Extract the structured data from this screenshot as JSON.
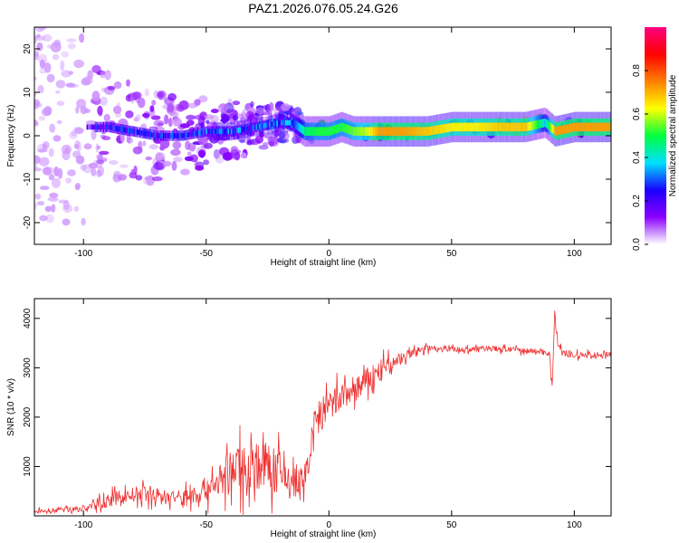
{
  "title": "PAZ1.2026.076.05.24.G26",
  "chart_data": [
    {
      "type": "heatmap",
      "xlabel": "Height of straight line (km)",
      "ylabel": "Frequency (Hz)",
      "xlim": [
        -120,
        115
      ],
      "ylim": [
        -25,
        25
      ],
      "xticks": [
        -100,
        -50,
        0,
        50,
        100
      ],
      "yticks": [
        -20,
        -10,
        0,
        10,
        20
      ],
      "colorbar": {
        "label": "Normalized spectral amplitude",
        "range": [
          0,
          1
        ],
        "ticks": [
          0.0,
          0.2,
          0.4,
          0.6,
          0.8
        ],
        "tick_labels": [
          "0.0",
          "0.2",
          "0.4",
          "0.6",
          "0.8"
        ],
        "stops": [
          "#ffffff",
          "#8a00ff",
          "#1a00ff",
          "#00e0ff",
          "#00ff40",
          "#ffff00",
          "#ff8000",
          "#ff0000",
          "#ff0080"
        ]
      },
      "signal_track": {
        "x": [
          -100,
          -90,
          -80,
          -70,
          -60,
          -50,
          -40,
          -30,
          -20,
          -15,
          -10,
          -5,
          0,
          5,
          10,
          15,
          20,
          30,
          40,
          50,
          60,
          70,
          80,
          88,
          92,
          100,
          115
        ],
        "freq_hz": [
          2,
          2,
          1,
          0,
          0,
          1,
          1,
          2,
          3,
          3,
          1,
          1,
          1,
          2,
          1,
          1,
          1,
          1,
          1,
          2,
          2,
          2,
          2,
          3,
          1,
          2,
          2
        ],
        "amplitude": [
          0.05,
          0.15,
          0.15,
          0.15,
          0.15,
          0.2,
          0.2,
          0.2,
          0.25,
          0.3,
          0.55,
          0.6,
          0.6,
          0.6,
          0.65,
          0.7,
          0.85,
          0.85,
          0.8,
          0.75,
          0.75,
          0.8,
          0.8,
          0.45,
          0.85,
          0.85,
          0.85
        ]
      }
    },
    {
      "type": "line",
      "xlabel": "Height of straight line (km)",
      "ylabel": "SNR (10 * v/v)",
      "xlim": [
        -120,
        115
      ],
      "ylim": [
        0,
        4400
      ],
      "xticks": [
        -100,
        -50,
        0,
        50,
        100
      ],
      "yticks": [
        1000,
        2000,
        3000,
        4000
      ],
      "series": [
        {
          "name": "SNR",
          "color": "#ee3030",
          "x": [
            -120,
            -110,
            -100,
            -95,
            -90,
            -85,
            -80,
            -75,
            -70,
            -65,
            -60,
            -55,
            -50,
            -45,
            -40,
            -35,
            -30,
            -25,
            -20,
            -15,
            -10,
            -8,
            -6,
            -4,
            -2,
            0,
            5,
            10,
            15,
            20,
            25,
            30,
            35,
            40,
            45,
            50,
            55,
            60,
            65,
            70,
            75,
            80,
            85,
            90,
            91,
            92,
            93,
            95,
            100,
            105,
            110,
            115
          ],
          "y": [
            80,
            120,
            150,
            220,
            300,
            380,
            420,
            440,
            420,
            380,
            360,
            420,
            550,
            700,
            900,
            1000,
            1050,
            980,
            860,
            700,
            560,
            1300,
            1800,
            2000,
            2100,
            2200,
            2400,
            2550,
            2700,
            2900,
            3050,
            3200,
            3320,
            3400,
            3400,
            3380,
            3360,
            3380,
            3400,
            3380,
            3360,
            3350,
            3330,
            3300,
            2500,
            4200,
            3600,
            3300,
            3250,
            3250,
            3250,
            3250
          ],
          "noise": [
            60,
            70,
            90,
            120,
            160,
            190,
            200,
            200,
            190,
            190,
            220,
            260,
            320,
            420,
            560,
            620,
            650,
            620,
            560,
            480,
            380,
            420,
            450,
            450,
            420,
            400,
            380,
            360,
            350,
            330,
            200,
            150,
            100,
            80,
            70,
            70,
            70,
            70,
            70,
            70,
            70,
            70,
            70,
            90,
            200,
            200,
            150,
            90,
            80,
            80,
            80,
            80
          ]
        }
      ]
    }
  ]
}
